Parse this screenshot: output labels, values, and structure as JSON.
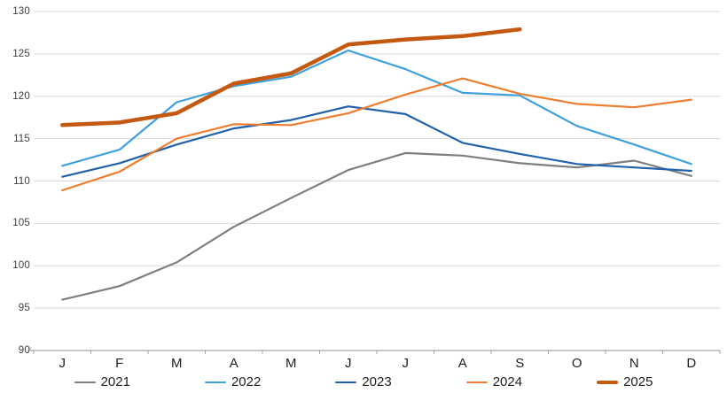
{
  "chart_data": {
    "type": "line",
    "title": "",
    "xlabel": "",
    "ylabel": "",
    "categories": [
      "J",
      "F",
      "M",
      "A",
      "M",
      "J",
      "J",
      "A",
      "S",
      "O",
      "N",
      "D"
    ],
    "ylim": [
      90,
      130
    ],
    "y_tick_step": 5,
    "y_tick_labels": [
      "130",
      "125",
      "120",
      "115",
      "110",
      "105",
      "100",
      "95",
      "90"
    ],
    "grid": true,
    "legend_position": "bottom",
    "colors": {
      "gridline": "#D9D9D9",
      "axis": "#A6A6A6",
      "background": "#FFFFFF"
    },
    "series": [
      {
        "name": "2021",
        "color": "#7F7F7F",
        "width": 2.2,
        "values": [
          96.0,
          97.6,
          100.4,
          104.6,
          108.0,
          111.3,
          113.3,
          113.0,
          112.1,
          111.6,
          112.4,
          110.6
        ]
      },
      {
        "name": "2022",
        "color": "#3FA0DC",
        "width": 2.2,
        "values": [
          111.8,
          113.7,
          119.3,
          121.2,
          122.3,
          125.4,
          123.2,
          120.4,
          120.1,
          116.5,
          114.3,
          112.0
        ]
      },
      {
        "name": "2023",
        "color": "#2061A9",
        "width": 2.2,
        "values": [
          110.5,
          112.1,
          114.3,
          116.2,
          117.2,
          118.8,
          117.9,
          114.5,
          113.2,
          112.0,
          111.6,
          111.2
        ]
      },
      {
        "name": "2024",
        "color": "#ED7D31",
        "width": 2.2,
        "values": [
          108.9,
          111.1,
          115.0,
          116.7,
          116.6,
          118.0,
          120.2,
          122.1,
          120.3,
          119.1,
          118.7,
          119.6
        ]
      },
      {
        "name": "2025",
        "color": "#C45911",
        "width": 4.5,
        "values": [
          116.6,
          116.9,
          118.0,
          121.5,
          122.7,
          126.1,
          126.7,
          127.1,
          127.9
        ]
      }
    ]
  }
}
